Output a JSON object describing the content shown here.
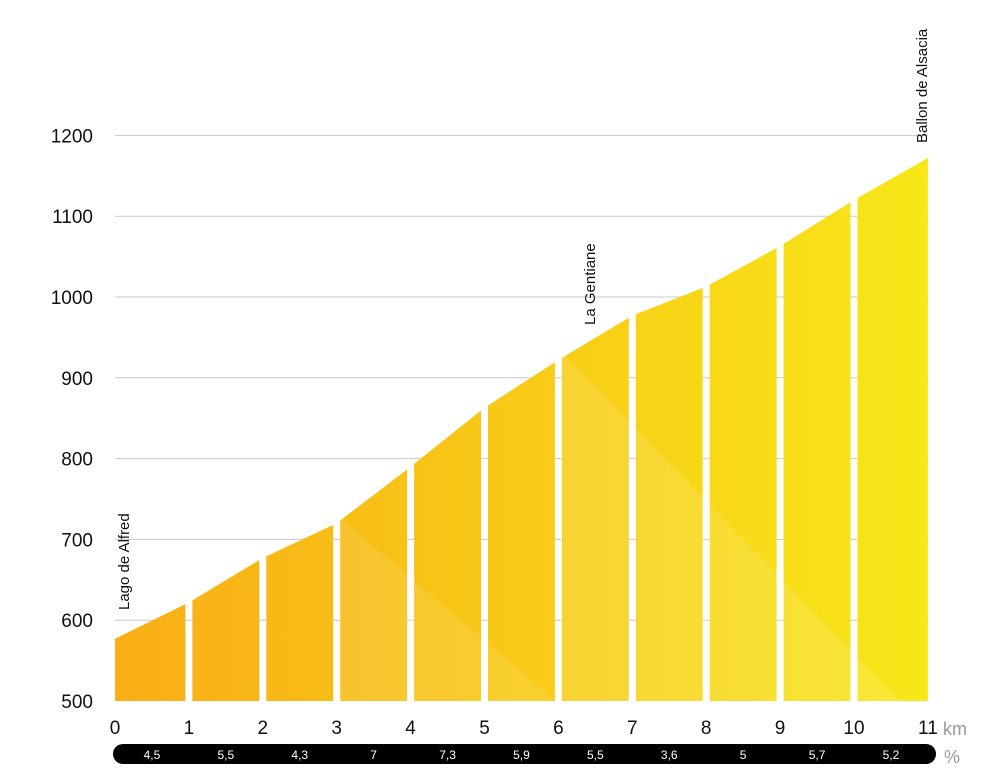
{
  "chart_data": {
    "type": "area",
    "x_unit": "km",
    "gradient_unit": "%",
    "ylim": [
      500,
      1200
    ],
    "xlim": [
      0,
      11
    ],
    "yticks": [
      500,
      600,
      700,
      800,
      900,
      1000,
      1100,
      1200
    ],
    "xticks": [
      0,
      1,
      2,
      3,
      4,
      5,
      6,
      7,
      8,
      9,
      10,
      11
    ],
    "grid": true,
    "segments": [
      {
        "from": 0,
        "to": 1,
        "start_elev": 577,
        "end_elev": 622,
        "gradient": "4,5"
      },
      {
        "from": 1,
        "to": 2,
        "start_elev": 622,
        "end_elev": 677,
        "gradient": "5,5"
      },
      {
        "from": 2,
        "to": 3,
        "start_elev": 677,
        "end_elev": 720,
        "gradient": "4,3"
      },
      {
        "from": 3,
        "to": 4,
        "start_elev": 720,
        "end_elev": 790,
        "gradient": "7"
      },
      {
        "from": 4,
        "to": 5,
        "start_elev": 790,
        "end_elev": 863,
        "gradient": "7,3"
      },
      {
        "from": 5,
        "to": 6,
        "start_elev": 863,
        "end_elev": 922,
        "gradient": "5,9"
      },
      {
        "from": 6,
        "to": 7,
        "start_elev": 922,
        "end_elev": 977,
        "gradient": "5,5"
      },
      {
        "from": 7,
        "to": 8,
        "start_elev": 977,
        "end_elev": 1013,
        "gradient": "3,6"
      },
      {
        "from": 8,
        "to": 9,
        "start_elev": 1013,
        "end_elev": 1063,
        "gradient": "5"
      },
      {
        "from": 9,
        "to": 10,
        "start_elev": 1063,
        "end_elev": 1120,
        "gradient": "5,7"
      },
      {
        "from": 10,
        "to": 11,
        "start_elev": 1120,
        "end_elev": 1172,
        "gradient": "5,2"
      }
    ],
    "annotations": [
      {
        "km": 0,
        "label": "Lago de Alfred"
      },
      {
        "km": 6,
        "label": "La Gentiane"
      },
      {
        "km": 11,
        "label": "Ballon de Alsacia"
      }
    ]
  },
  "colors": {
    "bar_start": "#f9ad16",
    "bar_end": "#f7e718",
    "grid": "#c8c8c8",
    "gradient_strip": "#000000"
  }
}
